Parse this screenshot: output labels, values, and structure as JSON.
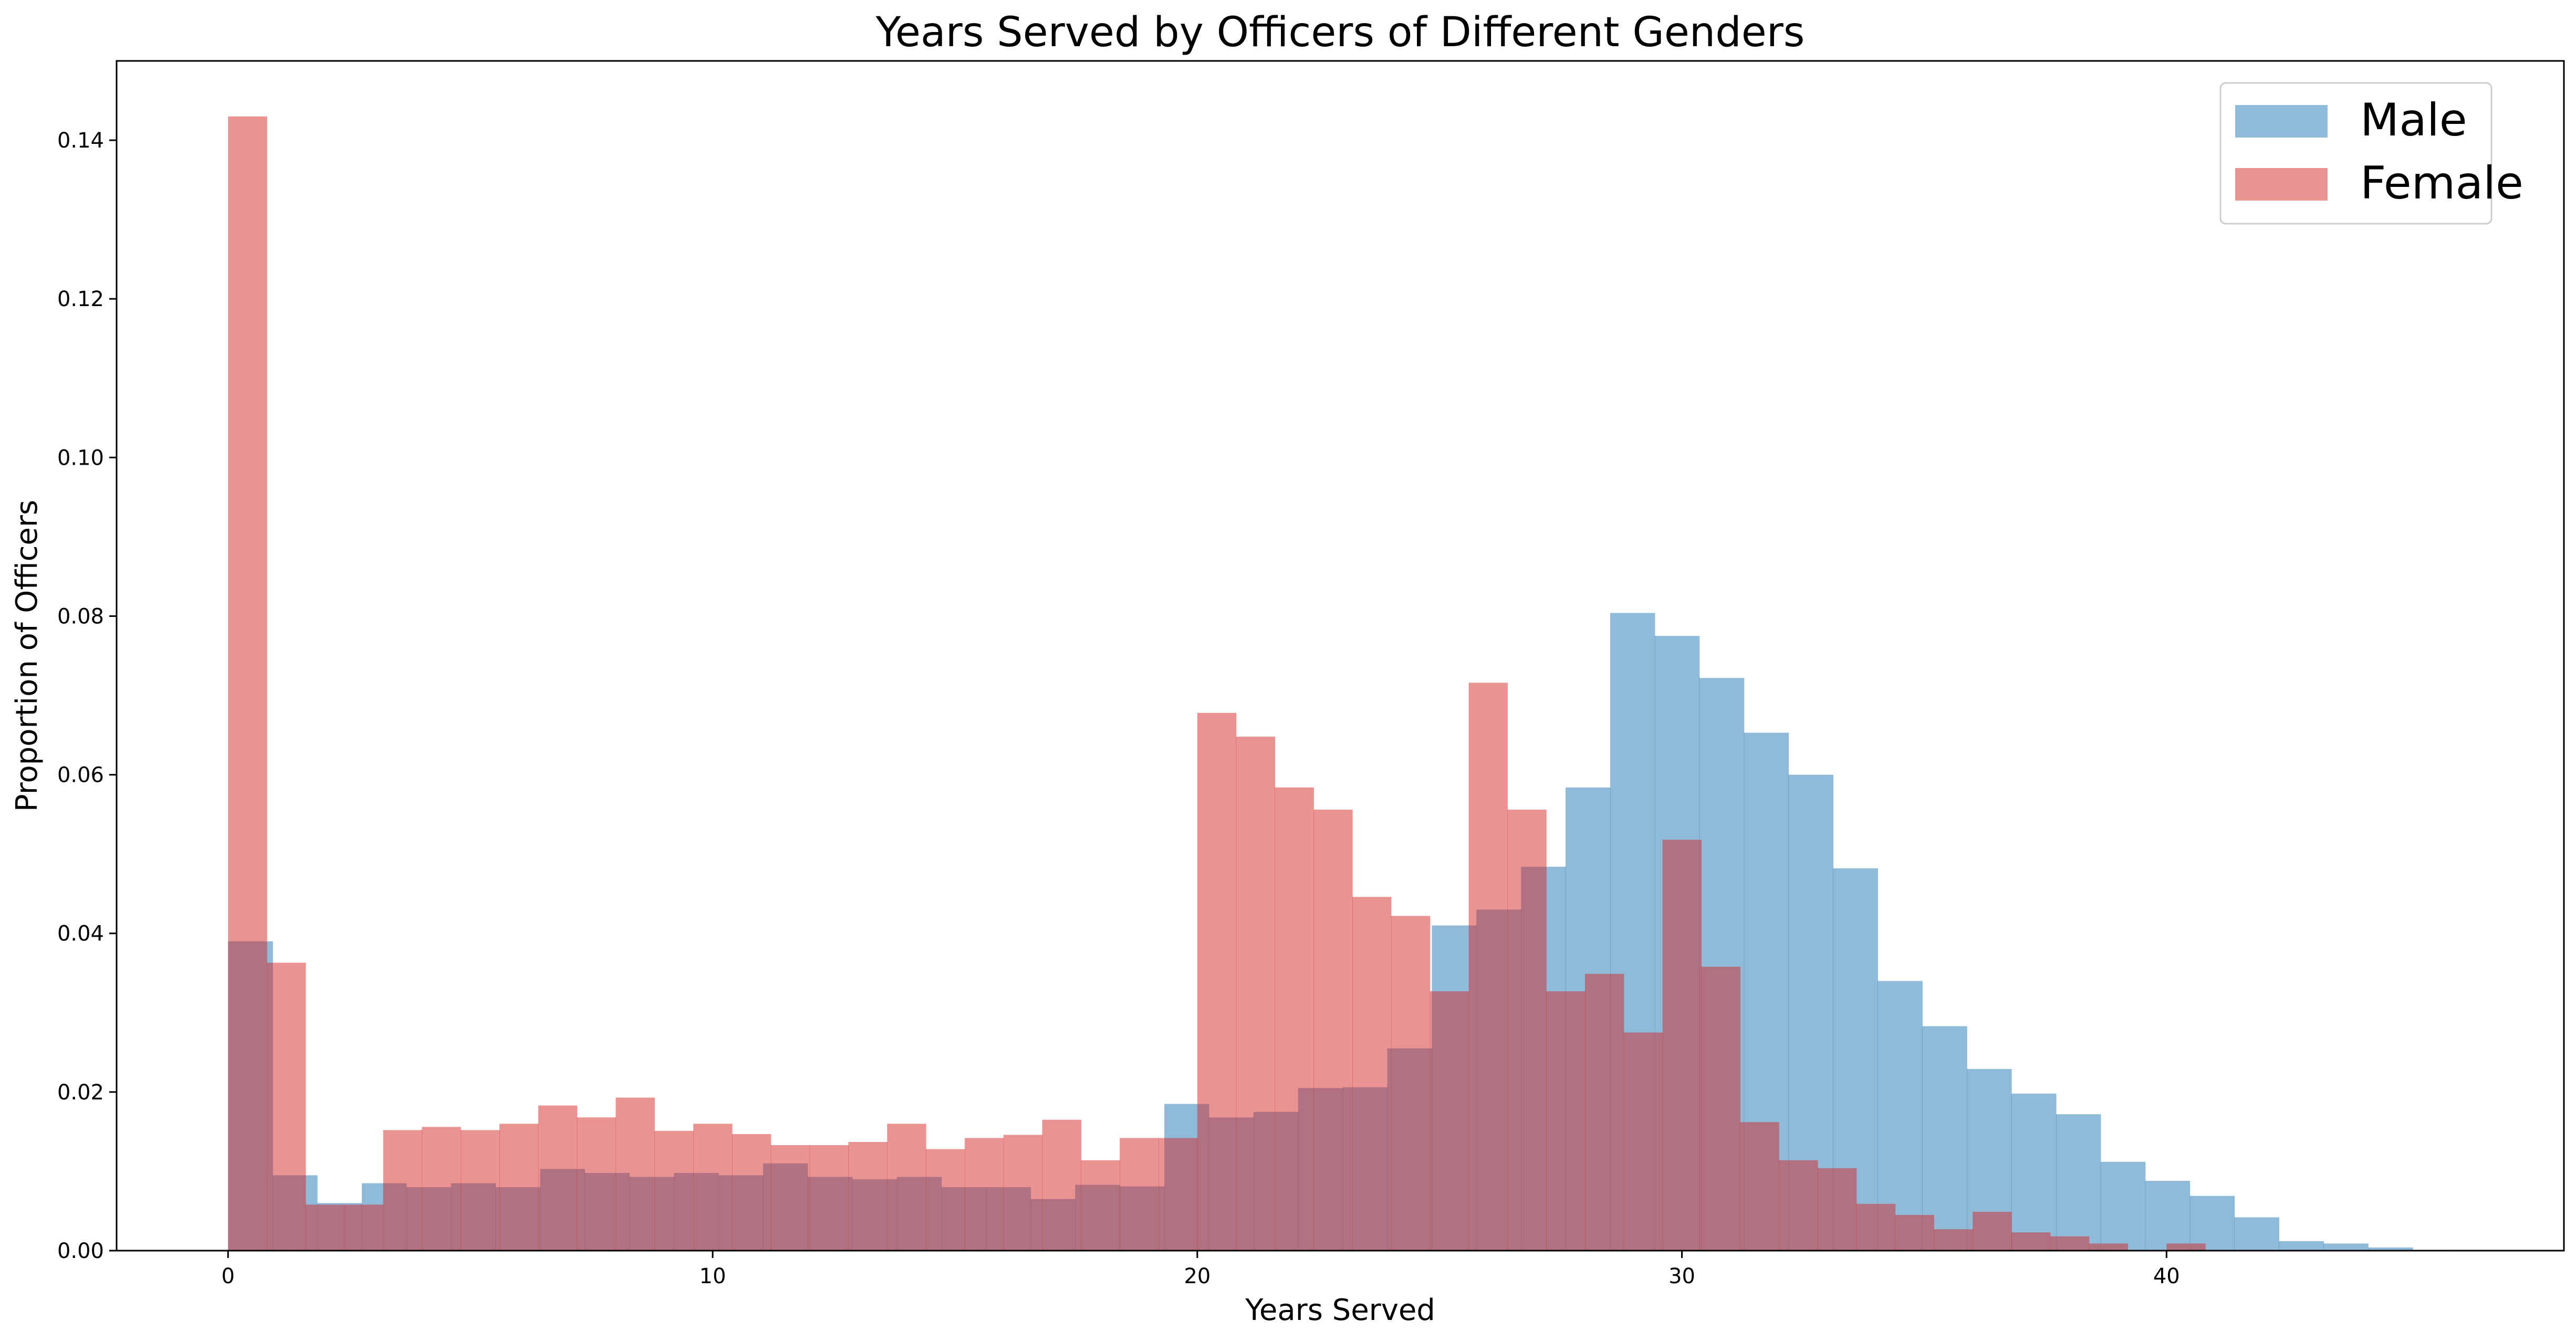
{
  "chart_data": {
    "type": "bar",
    "title": "Years Served by Officers of Different Genders",
    "xlabel": "Years Served",
    "ylabel": "Proportion of Officers",
    "xlim": [
      -2.3,
      48.2
    ],
    "ylim": [
      0,
      0.15
    ],
    "xticks": [
      0,
      10,
      20,
      30,
      40
    ],
    "yticks": [
      0.0,
      0.02,
      0.04,
      0.06,
      0.08,
      0.1,
      0.12,
      0.14
    ],
    "ytick_labels": [
      "0.00",
      "0.02",
      "0.04",
      "0.06",
      "0.08",
      "0.10",
      "0.12",
      "0.14"
    ],
    "legend_position": "top-right",
    "grid": false,
    "series": [
      {
        "name": "Male",
        "color": "#1f77b4",
        "opacity": 0.5,
        "bin_width": 0.92,
        "bin_start": 0,
        "values": [
          0.039,
          0.0095,
          0.006,
          0.0085,
          0.008,
          0.0085,
          0.008,
          0.0103,
          0.0098,
          0.0093,
          0.0098,
          0.0095,
          0.011,
          0.0093,
          0.009,
          0.0093,
          0.008,
          0.008,
          0.0065,
          0.0083,
          0.0081,
          0.0185,
          0.0168,
          0.0175,
          0.0205,
          0.0206,
          0.0255,
          0.041,
          0.043,
          0.0484,
          0.0584,
          0.0804,
          0.0775,
          0.0722,
          0.0653,
          0.06,
          0.0482,
          0.034,
          0.0283,
          0.0229,
          0.0198,
          0.0172,
          0.0112,
          0.0088,
          0.0069,
          0.0042,
          0.0012,
          0.0009,
          0.0004,
          0.0001
        ]
      },
      {
        "name": "Female",
        "color": "#d62728",
        "opacity": 0.5,
        "bin_width": 0.8,
        "bin_start": 0,
        "values": [
          0.143,
          0.0363,
          0.0058,
          0.0058,
          0.0152,
          0.0156,
          0.0152,
          0.016,
          0.0183,
          0.0168,
          0.0193,
          0.0151,
          0.016,
          0.0147,
          0.0133,
          0.0133,
          0.0137,
          0.016,
          0.0128,
          0.0142,
          0.0146,
          0.0165,
          0.0114,
          0.0142,
          0.0142,
          0.0678,
          0.0648,
          0.0584,
          0.0556,
          0.0446,
          0.0422,
          0.0327,
          0.0716,
          0.0556,
          0.0327,
          0.0349,
          0.0275,
          0.0518,
          0.0358,
          0.0162,
          0.0114,
          0.0104,
          0.0059,
          0.0045,
          0.0027,
          0.0049,
          0.0023,
          0.0018,
          0.0009,
          0,
          0.0009
        ]
      }
    ]
  }
}
